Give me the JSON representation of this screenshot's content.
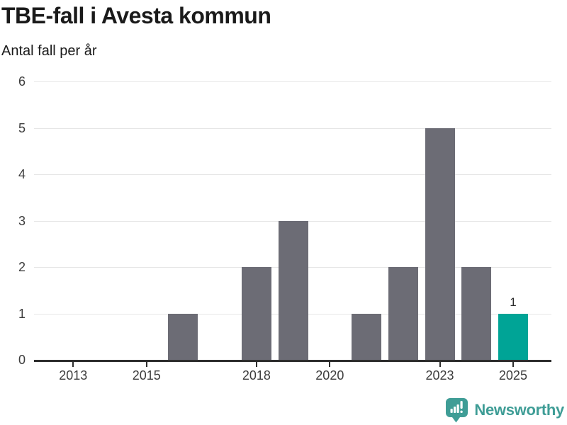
{
  "header": {
    "title": "TBE-fall i Avesta kommun",
    "subtitle": "Antal fall per år"
  },
  "chart_data": {
    "type": "bar",
    "title": "TBE-fall i Avesta kommun",
    "subtitle": "Antal fall per år",
    "categories": [
      "2013",
      "2014",
      "2015",
      "2016",
      "2017",
      "2018",
      "2019",
      "2020",
      "2021",
      "2022",
      "2023",
      "2024",
      "2025"
    ],
    "values": [
      0,
      0,
      0,
      1,
      0,
      2,
      3,
      0,
      1,
      2,
      5,
      2,
      1
    ],
    "ylim": [
      0,
      6
    ],
    "y_ticks": [
      0,
      1,
      2,
      3,
      4,
      5,
      6
    ],
    "x_tick_labels": [
      "2013",
      "2015",
      "2018",
      "2020",
      "2023",
      "2025"
    ],
    "grid": true,
    "legend": "none",
    "bar_color": "#6c6c75",
    "highlight_category": "2025",
    "highlight_color": "#00a496",
    "data_labels": [
      {
        "category": "2025",
        "label": "1"
      }
    ]
  },
  "footer": {
    "brand": "Newsworthy",
    "brand_color": "#3f9d96"
  }
}
